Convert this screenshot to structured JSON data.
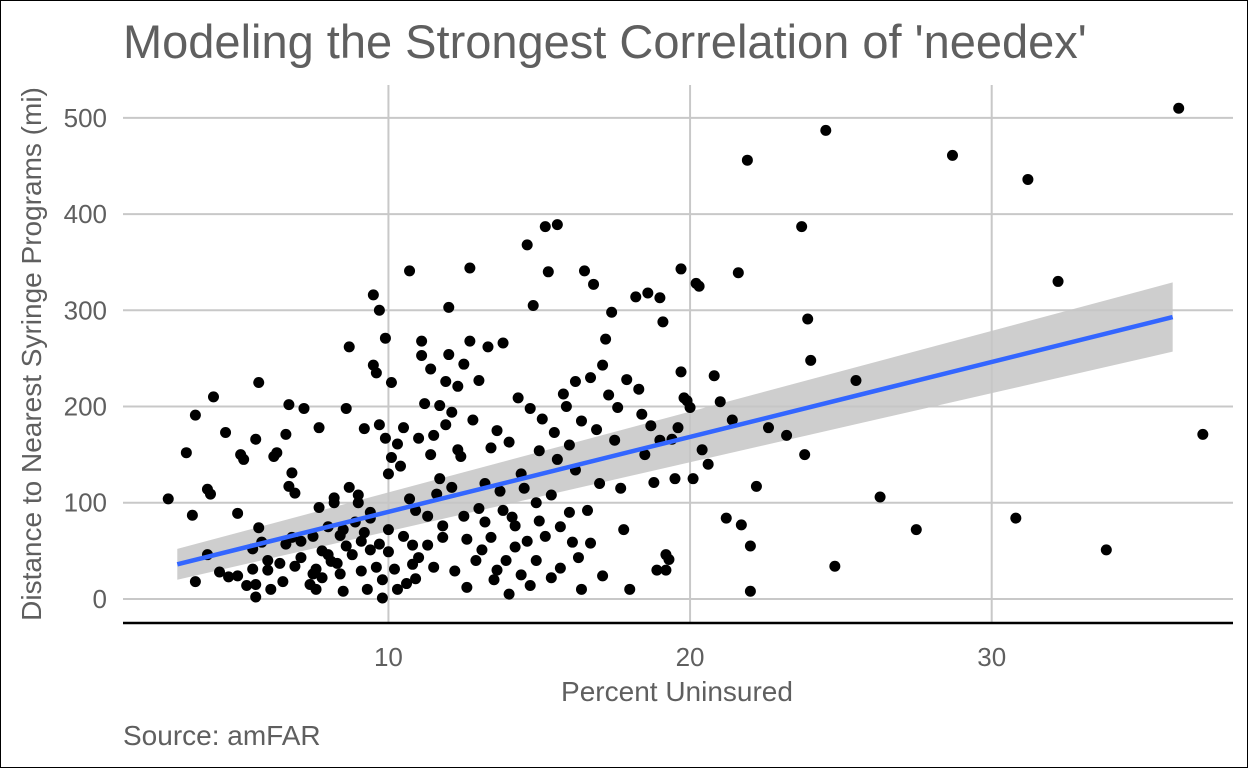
{
  "chart_data": {
    "type": "scatter",
    "title": "Modeling the Strongest Correlation of 'needex'",
    "xlabel": "Percent Uninsured",
    "ylabel": "Distance to Nearest Syringe Programs (mi)",
    "caption": "Source: amFAR",
    "xlim": [
      1.2,
      38.0
    ],
    "ylim": [
      -25,
      530
    ],
    "x_ticks": [
      10,
      20,
      30
    ],
    "x_tick_labels": [
      "10",
      "20",
      "30"
    ],
    "y_ticks": [
      0,
      100,
      200,
      300,
      400,
      500
    ],
    "y_tick_labels": [
      "0",
      "100",
      "200",
      "300",
      "400",
      "500"
    ],
    "grid": true,
    "colors": {
      "points": "#000000",
      "fit": "#3366ff",
      "band": "#c6c6c6"
    },
    "fit_line": {
      "method": "linear",
      "x": [
        3.0,
        36.0
      ],
      "y": [
        36,
        293
      ],
      "ci_lower": [
        20,
        257
      ],
      "ci_upper": [
        52,
        329
      ]
    },
    "points": [
      [
        2.7,
        104
      ],
      [
        3.3,
        152
      ],
      [
        3.5,
        87
      ],
      [
        3.6,
        18
      ],
      [
        3.6,
        191
      ],
      [
        4.0,
        46
      ],
      [
        4.0,
        114
      ],
      [
        4.1,
        109
      ],
      [
        4.2,
        210
      ],
      [
        4.4,
        28
      ],
      [
        4.6,
        173
      ],
      [
        4.7,
        23
      ],
      [
        5.0,
        24
      ],
      [
        5.0,
        89
      ],
      [
        5.1,
        150
      ],
      [
        5.2,
        145
      ],
      [
        5.3,
        14
      ],
      [
        5.5,
        31
      ],
      [
        5.5,
        52
      ],
      [
        5.6,
        2
      ],
      [
        5.6,
        15
      ],
      [
        5.6,
        166
      ],
      [
        5.7,
        225
      ],
      [
        5.7,
        74
      ],
      [
        5.8,
        59
      ],
      [
        6.0,
        40
      ],
      [
        6.0,
        30
      ],
      [
        6.1,
        10
      ],
      [
        6.2,
        148
      ],
      [
        6.3,
        152
      ],
      [
        6.4,
        37
      ],
      [
        6.5,
        18
      ],
      [
        6.6,
        57
      ],
      [
        6.6,
        171
      ],
      [
        6.7,
        202
      ],
      [
        6.7,
        117
      ],
      [
        6.8,
        64
      ],
      [
        6.8,
        131
      ],
      [
        6.9,
        110
      ],
      [
        6.9,
        34
      ],
      [
        7.1,
        60
      ],
      [
        7.1,
        43
      ],
      [
        7.2,
        198
      ],
      [
        7.4,
        15
      ],
      [
        7.5,
        26
      ],
      [
        7.5,
        65
      ],
      [
        7.6,
        10
      ],
      [
        7.6,
        31
      ],
      [
        7.7,
        178
      ],
      [
        7.7,
        95
      ],
      [
        7.8,
        50
      ],
      [
        7.8,
        22
      ],
      [
        8.0,
        46
      ],
      [
        8.0,
        75
      ],
      [
        8.1,
        39
      ],
      [
        8.2,
        100
      ],
      [
        8.2,
        105
      ],
      [
        8.3,
        37
      ],
      [
        8.4,
        66
      ],
      [
        8.4,
        26
      ],
      [
        8.5,
        72
      ],
      [
        8.5,
        8
      ],
      [
        8.6,
        55
      ],
      [
        8.6,
        198
      ],
      [
        8.7,
        262
      ],
      [
        8.7,
        116
      ],
      [
        8.8,
        46
      ],
      [
        8.9,
        80
      ],
      [
        9.0,
        100
      ],
      [
        9.0,
        108
      ],
      [
        9.1,
        29
      ],
      [
        9.1,
        60
      ],
      [
        9.2,
        69
      ],
      [
        9.2,
        177
      ],
      [
        9.3,
        10
      ],
      [
        9.4,
        90
      ],
      [
        9.4,
        84
      ],
      [
        9.4,
        51
      ],
      [
        9.5,
        243
      ],
      [
        9.5,
        316
      ],
      [
        9.6,
        33
      ],
      [
        9.6,
        235
      ],
      [
        9.7,
        300
      ],
      [
        9.7,
        181
      ],
      [
        9.7,
        57
      ],
      [
        9.8,
        20
      ],
      [
        9.8,
        1
      ],
      [
        9.9,
        271
      ],
      [
        9.9,
        167
      ],
      [
        10.0,
        72
      ],
      [
        10.0,
        130
      ],
      [
        10.0,
        49
      ],
      [
        10.1,
        147
      ],
      [
        10.1,
        225
      ],
      [
        10.2,
        31
      ],
      [
        10.3,
        161
      ],
      [
        10.3,
        10
      ],
      [
        10.4,
        138
      ],
      [
        10.5,
        65
      ],
      [
        10.5,
        178
      ],
      [
        10.6,
        16
      ],
      [
        10.7,
        341
      ],
      [
        10.7,
        104
      ],
      [
        10.8,
        36
      ],
      [
        10.8,
        56
      ],
      [
        10.9,
        92
      ],
      [
        10.9,
        21
      ],
      [
        11.0,
        167
      ],
      [
        11.0,
        43
      ],
      [
        11.1,
        253
      ],
      [
        11.1,
        268
      ],
      [
        11.2,
        203
      ],
      [
        11.3,
        86
      ],
      [
        11.3,
        56
      ],
      [
        11.4,
        150
      ],
      [
        11.4,
        239
      ],
      [
        11.5,
        170
      ],
      [
        11.5,
        33
      ],
      [
        11.6,
        109
      ],
      [
        11.7,
        201
      ],
      [
        11.7,
        125
      ],
      [
        11.8,
        76
      ],
      [
        11.8,
        64
      ],
      [
        11.9,
        181
      ],
      [
        11.9,
        226
      ],
      [
        12.0,
        303
      ],
      [
        12.0,
        254
      ],
      [
        12.1,
        194
      ],
      [
        12.1,
        116
      ],
      [
        12.2,
        29
      ],
      [
        12.3,
        155
      ],
      [
        12.3,
        221
      ],
      [
        12.4,
        148
      ],
      [
        12.5,
        86
      ],
      [
        12.5,
        244
      ],
      [
        12.6,
        62
      ],
      [
        12.6,
        12
      ],
      [
        12.7,
        344
      ],
      [
        12.7,
        268
      ],
      [
        12.8,
        186
      ],
      [
        12.9,
        40
      ],
      [
        13.0,
        227
      ],
      [
        13.0,
        94
      ],
      [
        13.1,
        51
      ],
      [
        13.2,
        120
      ],
      [
        13.2,
        80
      ],
      [
        13.3,
        262
      ],
      [
        13.4,
        157
      ],
      [
        13.4,
        64
      ],
      [
        13.5,
        20
      ],
      [
        13.6,
        175
      ],
      [
        13.6,
        30
      ],
      [
        13.7,
        112
      ],
      [
        13.8,
        266
      ],
      [
        13.8,
        92
      ],
      [
        13.9,
        40
      ],
      [
        14.0,
        163
      ],
      [
        14.0,
        5
      ],
      [
        14.1,
        85
      ],
      [
        14.2,
        76
      ],
      [
        14.2,
        54
      ],
      [
        14.3,
        209
      ],
      [
        14.4,
        130
      ],
      [
        14.4,
        25
      ],
      [
        14.5,
        115
      ],
      [
        14.6,
        368
      ],
      [
        14.6,
        60
      ],
      [
        14.7,
        198
      ],
      [
        14.7,
        14
      ],
      [
        14.8,
        305
      ],
      [
        14.9,
        100
      ],
      [
        14.9,
        40
      ],
      [
        15.0,
        81
      ],
      [
        15.0,
        154
      ],
      [
        15.1,
        187
      ],
      [
        15.2,
        65
      ],
      [
        15.2,
        387
      ],
      [
        15.3,
        340
      ],
      [
        15.4,
        108
      ],
      [
        15.4,
        22
      ],
      [
        15.5,
        173
      ],
      [
        15.6,
        389
      ],
      [
        15.6,
        145
      ],
      [
        15.7,
        75
      ],
      [
        15.7,
        32
      ],
      [
        15.8,
        213
      ],
      [
        15.9,
        200
      ],
      [
        16.0,
        160
      ],
      [
        16.0,
        90
      ],
      [
        16.1,
        59
      ],
      [
        16.2,
        226
      ],
      [
        16.2,
        134
      ],
      [
        16.3,
        43
      ],
      [
        16.4,
        185
      ],
      [
        16.4,
        10
      ],
      [
        16.5,
        341
      ],
      [
        16.6,
        92
      ],
      [
        16.7,
        230
      ],
      [
        16.7,
        58
      ],
      [
        16.8,
        327
      ],
      [
        16.9,
        176
      ],
      [
        17.0,
        120
      ],
      [
        17.1,
        243
      ],
      [
        17.1,
        24
      ],
      [
        17.2,
        270
      ],
      [
        17.3,
        212
      ],
      [
        17.4,
        298
      ],
      [
        17.5,
        165
      ],
      [
        17.6,
        199
      ],
      [
        17.7,
        115
      ],
      [
        17.8,
        72
      ],
      [
        17.9,
        228
      ],
      [
        18.0,
        10
      ],
      [
        18.2,
        314
      ],
      [
        18.3,
        218
      ],
      [
        18.4,
        192
      ],
      [
        18.5,
        150
      ],
      [
        18.6,
        318
      ],
      [
        18.7,
        180
      ],
      [
        18.8,
        121
      ],
      [
        18.9,
        30
      ],
      [
        19.0,
        165
      ],
      [
        19.0,
        313
      ],
      [
        19.1,
        288
      ],
      [
        19.2,
        30
      ],
      [
        19.2,
        46
      ],
      [
        19.3,
        41
      ],
      [
        19.4,
        166
      ],
      [
        19.5,
        125
      ],
      [
        19.6,
        178
      ],
      [
        19.7,
        236
      ],
      [
        19.7,
        343
      ],
      [
        19.8,
        209
      ],
      [
        19.9,
        206
      ],
      [
        20.0,
        199
      ],
      [
        20.1,
        125
      ],
      [
        20.2,
        328
      ],
      [
        20.3,
        325
      ],
      [
        20.4,
        155
      ],
      [
        20.6,
        140
      ],
      [
        20.8,
        232
      ],
      [
        21.0,
        205
      ],
      [
        21.2,
        84
      ],
      [
        21.4,
        186
      ],
      [
        21.6,
        339
      ],
      [
        21.7,
        77
      ],
      [
        21.9,
        456
      ],
      [
        22.0,
        55
      ],
      [
        22.0,
        8
      ],
      [
        22.2,
        117
      ],
      [
        22.6,
        178
      ],
      [
        23.2,
        170
      ],
      [
        23.7,
        387
      ],
      [
        23.8,
        150
      ],
      [
        23.9,
        291
      ],
      [
        24.0,
        248
      ],
      [
        24.5,
        487
      ],
      [
        24.8,
        34
      ],
      [
        25.5,
        227
      ],
      [
        26.3,
        106
      ],
      [
        27.5,
        72
      ],
      [
        28.7,
        461
      ],
      [
        30.8,
        84
      ],
      [
        31.2,
        436
      ],
      [
        32.2,
        330
      ],
      [
        33.8,
        51
      ],
      [
        36.2,
        510
      ],
      [
        37.0,
        171
      ]
    ]
  }
}
